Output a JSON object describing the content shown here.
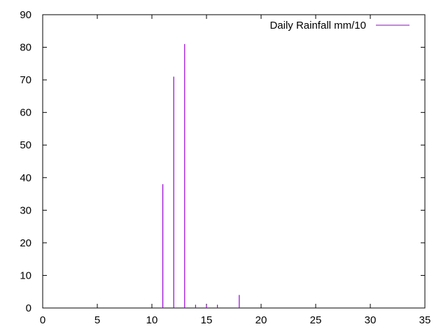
{
  "chart_data": {
    "type": "impulse",
    "series": [
      {
        "name": "Daily Rainfall mm/10",
        "color": "#9400d3",
        "x": [
          11,
          12,
          13,
          14,
          15,
          16,
          18
        ],
        "y": [
          38,
          71,
          81,
          1,
          1,
          1,
          4
        ]
      }
    ],
    "xlim": [
      0,
      35
    ],
    "ylim": [
      0,
      90
    ],
    "xticks": [
      0,
      5,
      10,
      15,
      20,
      25,
      30,
      35
    ],
    "yticks": [
      0,
      10,
      20,
      30,
      40,
      50,
      60,
      70,
      80,
      90
    ],
    "grid": false,
    "legend_position": "top-right",
    "title": "",
    "xlabel": "",
    "ylabel": ""
  }
}
